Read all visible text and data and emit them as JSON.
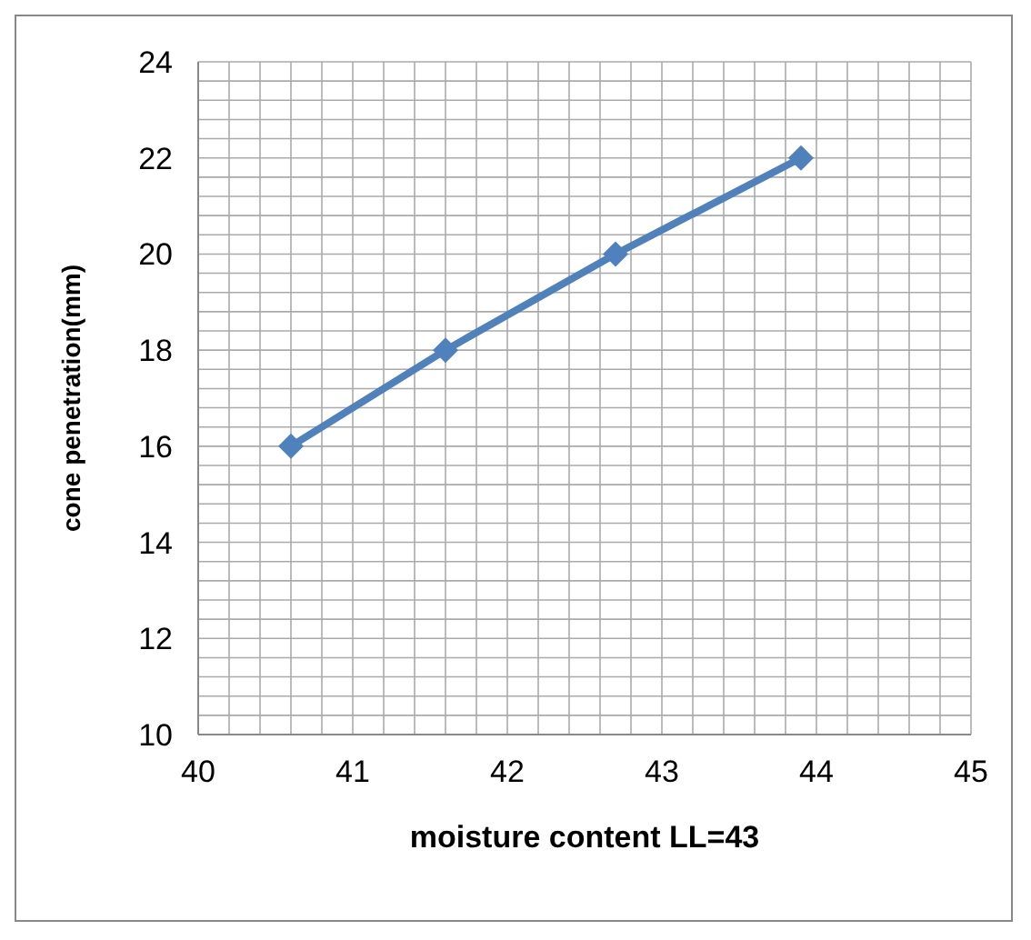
{
  "chart_data": {
    "type": "line",
    "xlabel": "moisture content     LL=43",
    "ylabel": "cone penetration(mm)",
    "x": [
      40.6,
      41.6,
      42.7,
      43.9
    ],
    "series": [
      {
        "color": "#4f81bd",
        "values": [
          16,
          18,
          20,
          22
        ]
      }
    ],
    "xlim": [
      40,
      45
    ],
    "ylim": [
      10,
      24
    ],
    "xticks": [
      40,
      {
        "value": 40.2,
        "label": null
      },
      {
        "value": 40.4,
        "label": null
      },
      {
        "value": 40.6,
        "label": null
      },
      {
        "value": 40.8,
        "label": null
      },
      41,
      {
        "value": 41.2,
        "label": null
      },
      {
        "value": 41.4,
        "label": null
      },
      {
        "value": 41.6,
        "label": null
      },
      {
        "value": 41.8,
        "label": null
      },
      42,
      {
        "value": 42.2,
        "label": null
      },
      {
        "value": 42.4,
        "label": null
      },
      {
        "value": 42.6,
        "label": null
      },
      {
        "value": 42.8,
        "label": null
      },
      43,
      {
        "value": 43.2,
        "label": null
      },
      {
        "value": 43.4,
        "label": null
      },
      {
        "value": 43.6,
        "label": null
      },
      {
        "value": 43.8,
        "label": null
      },
      44,
      {
        "value": 44.2,
        "label": null
      },
      {
        "value": 44.4,
        "label": null
      },
      {
        "value": 44.6,
        "label": null
      },
      {
        "value": 44.8,
        "label": null
      },
      45
    ],
    "yticks": [
      10,
      {
        "value": 10.4,
        "label": null
      },
      {
        "value": 10.8,
        "label": null
      },
      {
        "value": 11.2,
        "label": null
      },
      {
        "value": 11.6,
        "label": null
      },
      12,
      {
        "value": 12.4,
        "label": null
      },
      {
        "value": 12.8,
        "label": null
      },
      {
        "value": 13.2,
        "label": null
      },
      {
        "value": 13.6,
        "label": null
      },
      14,
      {
        "value": 14.4,
        "label": null
      },
      {
        "value": 14.8,
        "label": null
      },
      {
        "value": 15.2,
        "label": null
      },
      {
        "value": 15.6,
        "label": null
      },
      16,
      {
        "value": 16.4,
        "label": null
      },
      {
        "value": 16.8,
        "label": null
      },
      {
        "value": 17.2,
        "label": null
      },
      {
        "value": 17.6,
        "label": null
      },
      18,
      {
        "value": 18.4,
        "label": null
      },
      {
        "value": 18.8,
        "label": null
      },
      {
        "value": 19.2,
        "label": null
      },
      {
        "value": 19.6,
        "label": null
      },
      20,
      {
        "value": 20.4,
        "label": null
      },
      {
        "value": 20.8,
        "label": null
      },
      {
        "value": 21.2,
        "label": null
      },
      {
        "value": 21.6,
        "label": null
      },
      22,
      {
        "value": 22.4,
        "label": null
      },
      {
        "value": 22.8,
        "label": null
      },
      {
        "value": 23.2,
        "label": null
      },
      {
        "value": 23.6,
        "label": null
      },
      24
    ],
    "grid": true,
    "marker": "diamond",
    "line_style": "solid"
  }
}
